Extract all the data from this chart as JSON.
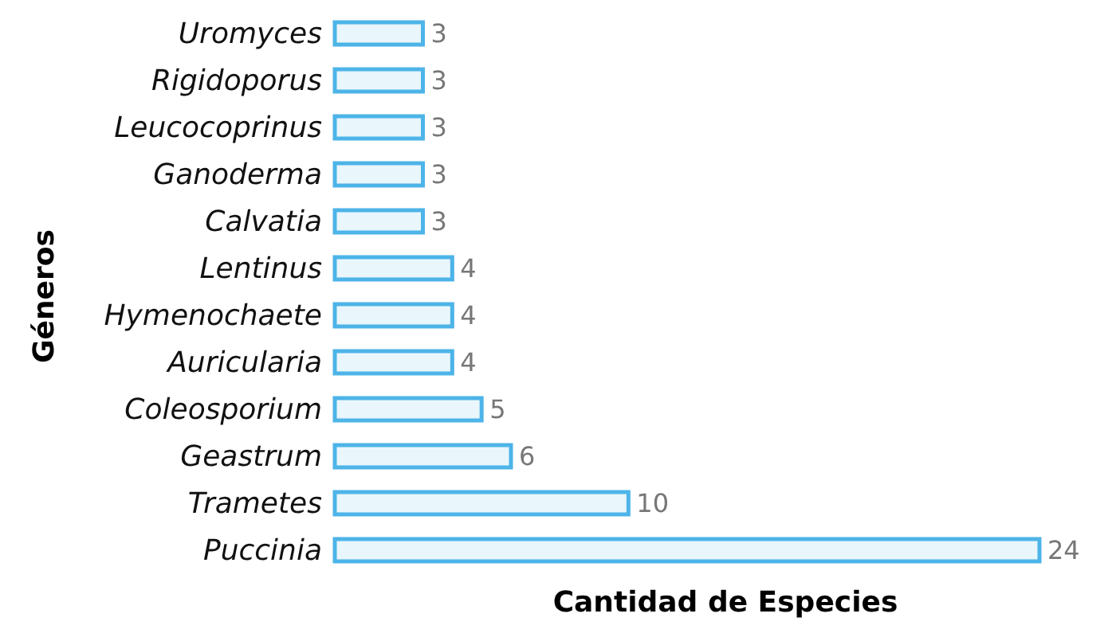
{
  "chart_data": {
    "type": "bar",
    "orientation": "horizontal",
    "xlabel": "Cantidad de Especies",
    "ylabel": "Géneros",
    "categories": [
      "Uromyces",
      "Rigidoporus",
      "Leucocoprinus",
      "Ganoderma",
      "Calvatia",
      "Lentinus",
      "Hymenochaete",
      "Auricularia",
      "Coleosporium",
      "Geastrum",
      "Trametes",
      "Puccinia"
    ],
    "values": [
      3,
      3,
      3,
      3,
      3,
      4,
      4,
      4,
      5,
      6,
      10,
      24
    ],
    "color": "#4db4e8",
    "data_labels": true,
    "grid": false,
    "legend": false
  }
}
